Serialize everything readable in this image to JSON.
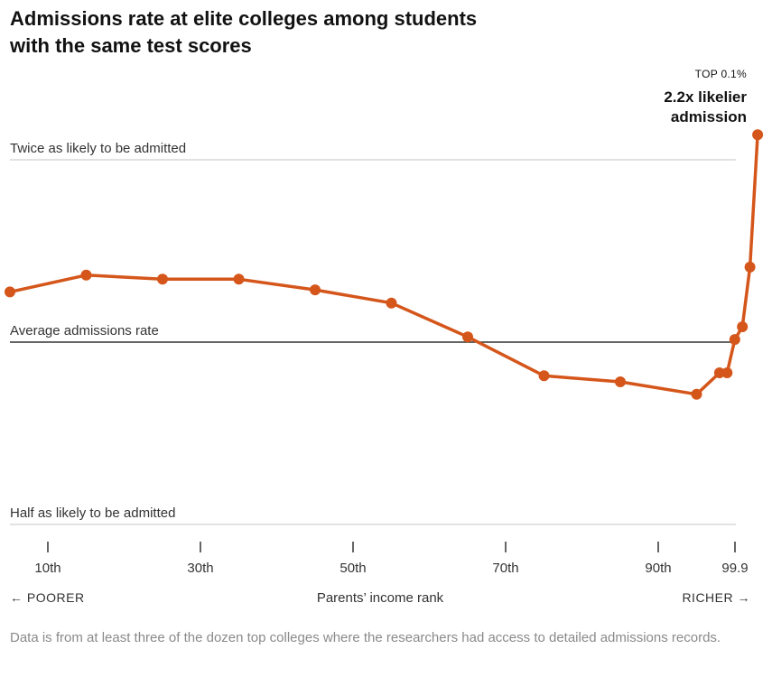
{
  "chart_data": {
    "type": "line",
    "title": "Admissions rate at elite colleges among students with the same test scores",
    "xlabel": "Parents’ income rank",
    "ylabel": "",
    "x_tick_labels": [
      "10th",
      "30th",
      "50th",
      "70th",
      "90th",
      "99.9"
    ],
    "y_reference_lines": [
      {
        "label": "Twice as likely to be admitted",
        "value": 2.0
      },
      {
        "label": "Average admissions rate",
        "value": 1.0
      },
      {
        "label": "Half as likely to be admitted",
        "value": 0.5
      }
    ],
    "y_scale": "log",
    "ylim": [
      0.5,
      2.0
    ],
    "series": [
      {
        "color": "#d5561b",
        "points": [
          {
            "x": 0,
            "y": 1.21
          },
          {
            "x": 1,
            "y": 1.29
          },
          {
            "x": 2,
            "y": 1.27
          },
          {
            "x": 3,
            "y": 1.27
          },
          {
            "x": 4,
            "y": 1.22
          },
          {
            "x": 5,
            "y": 1.16
          },
          {
            "x": 6,
            "y": 1.02
          },
          {
            "x": 7,
            "y": 0.88
          },
          {
            "x": 8,
            "y": 0.86
          },
          {
            "x": 9,
            "y": 0.82
          },
          {
            "x": 9.3,
            "y": 0.89
          },
          {
            "x": 9.4,
            "y": 0.89
          },
          {
            "x": 9.5,
            "y": 1.01
          },
          {
            "x": 9.6,
            "y": 1.06
          },
          {
            "x": 9.7,
            "y": 1.33
          },
          {
            "x": 9.8,
            "y": 2.2
          }
        ]
      }
    ],
    "annotation": {
      "small": "TOP 0.1%",
      "big_line1": "2.2x likelier",
      "big_line2": "admission"
    }
  },
  "footer": {
    "poorer": "← POORER",
    "xlabel": "Parents’ income rank",
    "richer": "RICHER →"
  },
  "note": "Data is from at least three of the dozen top colleges where the researchers had access to detailed admissions records."
}
